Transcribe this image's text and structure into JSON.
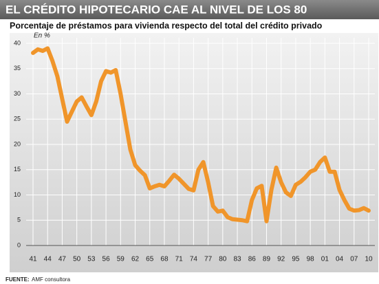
{
  "chart_data": {
    "type": "line",
    "title": "EL CRÉDITO HIPOTECARIO CAE AL NIVEL DE LOS 80",
    "subtitle": "Porcentaje de préstamos para vivienda respecto del total del crédito privado",
    "y_unit": "En %",
    "source_label": "FUENTE:",
    "source": "AMF consultora",
    "categories": [
      "41",
      null,
      null,
      "44",
      null,
      null,
      "47",
      null,
      null,
      "50",
      null,
      null,
      "53",
      null,
      null,
      "56",
      null,
      null,
      "59",
      null,
      null,
      "62",
      null,
      null,
      "65",
      null,
      null,
      "68",
      null,
      null,
      "71",
      null,
      null,
      "74",
      null,
      null,
      "77",
      null,
      null,
      "80",
      null,
      null,
      "83",
      null,
      null,
      "86",
      null,
      null,
      "89",
      null,
      null,
      "92",
      null,
      null,
      "95",
      null,
      null,
      "98",
      null,
      null,
      "01",
      null,
      null,
      "04",
      null,
      null,
      "07",
      null,
      null,
      "10"
    ],
    "values": [
      38.1,
      38.8,
      38.5,
      39,
      36.5,
      33.5,
      29,
      24.5,
      26.5,
      28.5,
      29.3,
      27.5,
      25.8,
      28.5,
      32.5,
      34.5,
      34.2,
      34.7,
      30,
      24.5,
      19,
      15.9,
      14.8,
      13.9,
      11.3,
      11.7,
      12,
      11.7,
      12.8,
      14,
      13.2,
      12.2,
      11.2,
      10.9,
      15,
      16.5,
      12.5,
      7.8,
      6.7,
      6.9,
      5.6,
      5.2,
      5.1,
      5,
      4.8,
      9,
      11.3,
      11.8,
      4.8,
      11,
      15.4,
      12.5,
      10.5,
      9.8,
      12,
      12.6,
      13.5,
      14.6,
      15,
      16.5,
      17.4,
      14.6,
      14.6,
      11,
      9,
      7.3,
      6.9,
      7,
      7.4,
      6.9
    ],
    "color": "#f0952a",
    "ylim": [
      0,
      40
    ],
    "yticks": [
      0,
      5,
      10,
      15,
      20,
      25,
      30,
      35,
      40
    ],
    "grid": true
  }
}
